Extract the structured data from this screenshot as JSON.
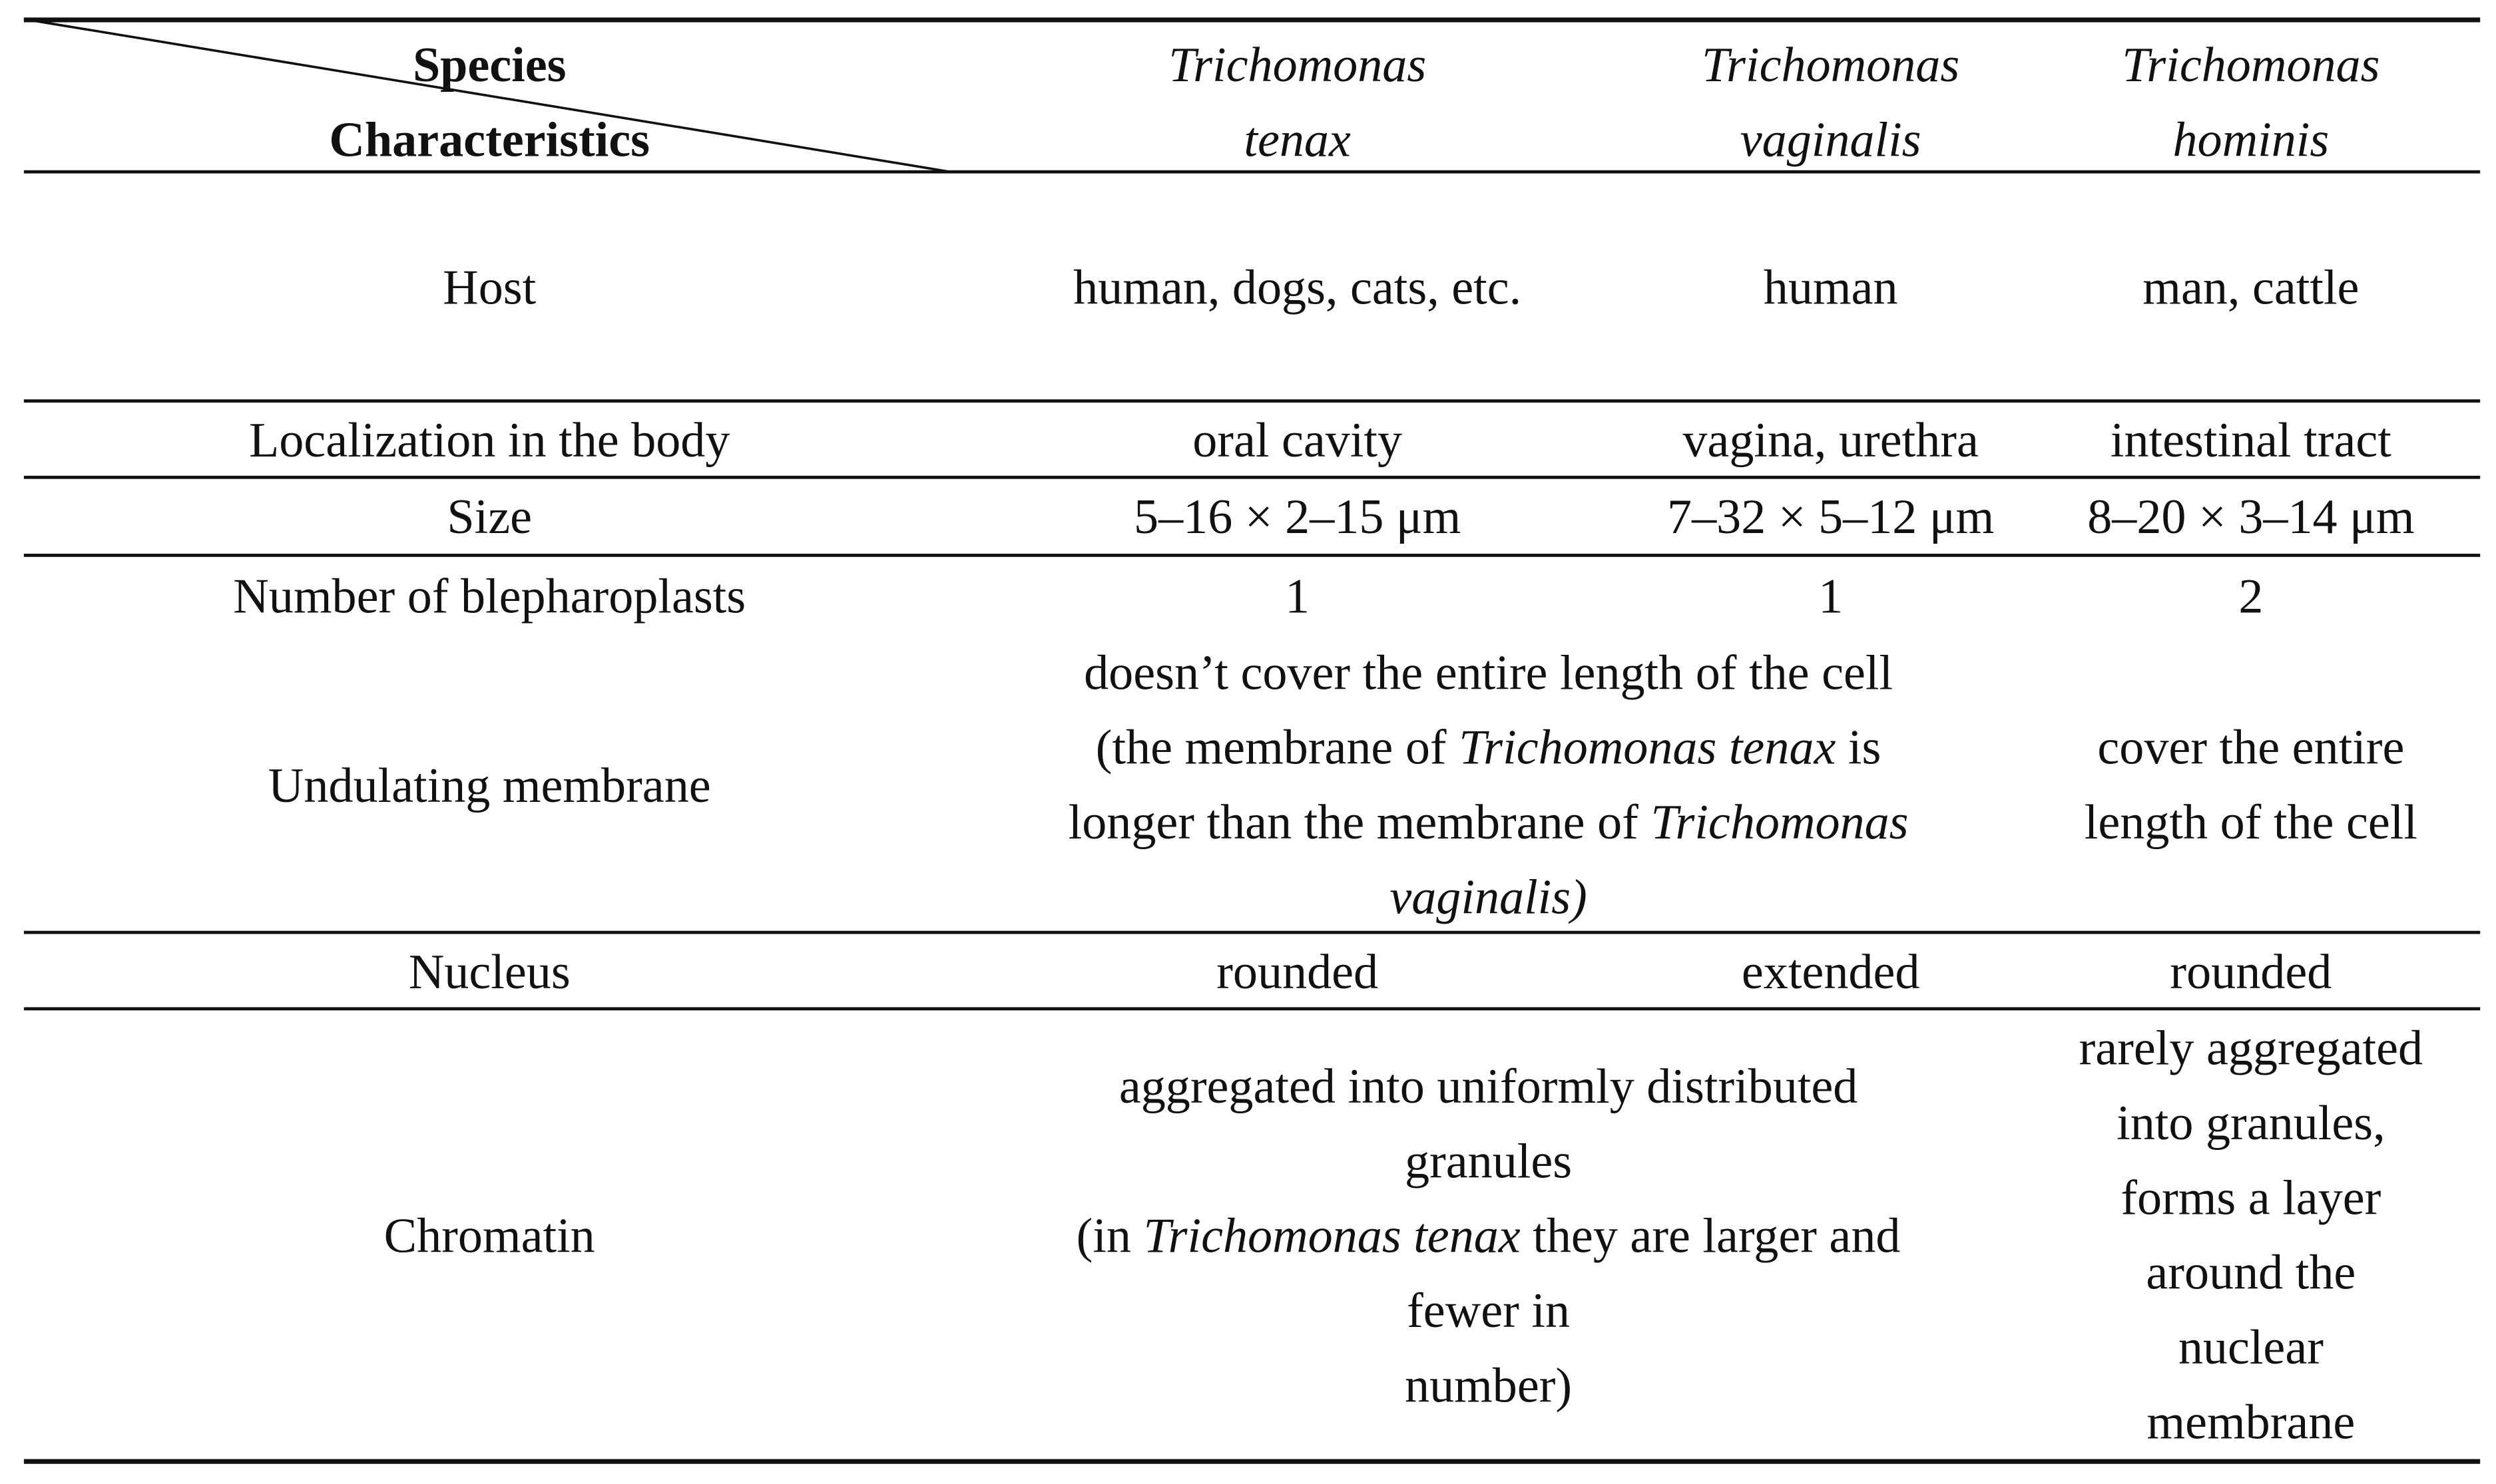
{
  "table": {
    "corner": {
      "top": "Species",
      "bottom": "Characteristics"
    },
    "columns": [
      [
        "Trichomonas",
        "tenax"
      ],
      [
        "Trichomonas",
        "vaginalis"
      ],
      [
        "Trichomonas",
        "hominis"
      ]
    ],
    "rows": [
      {
        "label": "Host",
        "cells": [
          {
            "lines": [
              [
                "human, dogs, cats, etc."
              ]
            ]
          },
          {
            "lines": [
              [
                "human"
              ]
            ]
          },
          {
            "lines": [
              [
                "man, cattle"
              ]
            ]
          }
        ]
      },
      {
        "label": "Localization in the body",
        "cells": [
          {
            "lines": [
              [
                "oral cavity"
              ]
            ]
          },
          {
            "lines": [
              [
                "vagina, urethra"
              ]
            ]
          },
          {
            "lines": [
              [
                "intestinal tract"
              ]
            ]
          }
        ]
      },
      {
        "label": "Size",
        "cells": [
          {
            "lines": [
              [
                "5–16 × 2–15 μm"
              ]
            ]
          },
          {
            "lines": [
              [
                "7–32 × 5–12 μm"
              ]
            ]
          },
          {
            "lines": [
              [
                "8–20 × 3–14 μm"
              ]
            ]
          }
        ]
      },
      {
        "label": "Number of blepharoplasts",
        "cells": [
          {
            "lines": [
              [
                "1"
              ]
            ]
          },
          {
            "lines": [
              [
                "1"
              ]
            ]
          },
          {
            "lines": [
              [
                "2"
              ]
            ]
          }
        ]
      },
      {
        "label": "Undulating membrane",
        "cells": [
          {
            "span": 2,
            "lines": [
              [
                "doesn’t cover the entire length of the cell"
              ],
              [
                "(the membrane of ",
                {
                  "text": "Trichomonas tenax",
                  "italic": true
                },
                " is"
              ],
              [
                "longer than the membrane of ",
                {
                  "text": "Trichomonas",
                  "italic": true
                }
              ],
              [
                {
                  "text": "vaginalis)",
                  "italic": true
                }
              ]
            ]
          },
          {
            "lines": [
              [
                "cover the entire"
              ],
              [
                "length of the cell"
              ]
            ]
          }
        ]
      },
      {
        "label": "Nucleus",
        "cells": [
          {
            "lines": [
              [
                "rounded"
              ]
            ]
          },
          {
            "lines": [
              [
                "extended"
              ]
            ]
          },
          {
            "lines": [
              [
                "rounded"
              ]
            ]
          }
        ]
      },
      {
        "label": "Chromatin",
        "cells": [
          {
            "span": 2,
            "lines": [
              [
                "aggregated into uniformly distributed"
              ],
              [
                "granules"
              ],
              [
                "(in ",
                {
                  "text": "Trichomonas tenax",
                  "italic": true
                },
                " they are larger and"
              ],
              [
                "fewer in"
              ],
              [
                "number)"
              ]
            ]
          },
          {
            "lines": [
              [
                "rarely aggregated"
              ],
              [
                "into granules,"
              ],
              [
                "forms a layer"
              ],
              [
                "around the"
              ],
              [
                "nuclear"
              ],
              [
                "membrane"
              ]
            ]
          }
        ]
      }
    ]
  }
}
